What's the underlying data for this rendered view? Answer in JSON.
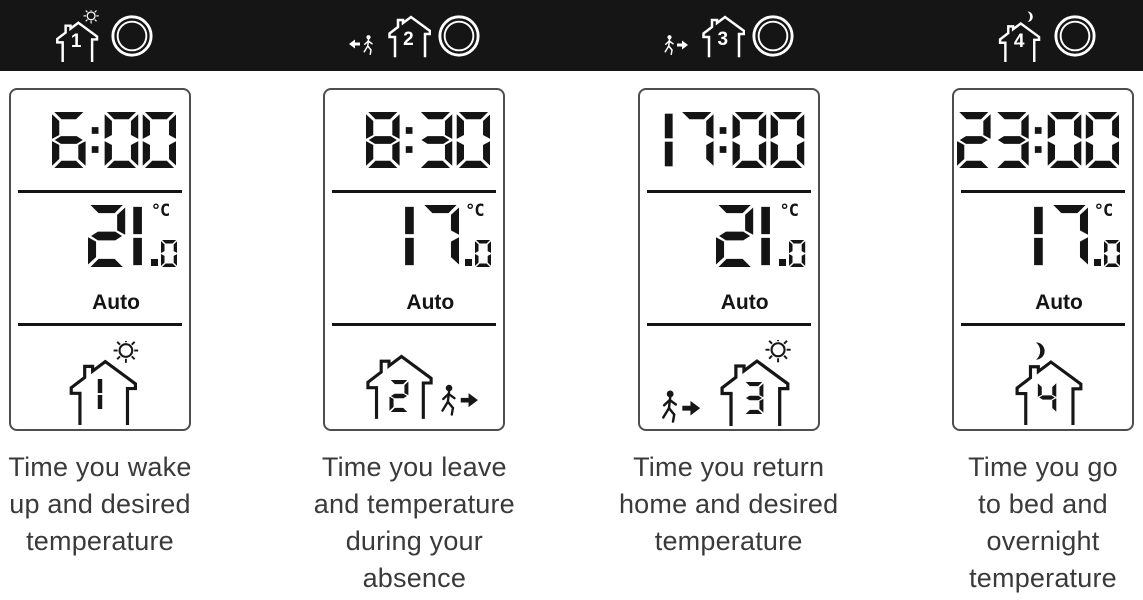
{
  "colors": {
    "header_bg": "#151515",
    "lcd_digit": "#141414",
    "caption_text": "#3a3a3a",
    "panel_border": "#4e4e4e",
    "icon_white": "#ffffff"
  },
  "header": {
    "programs": [
      {
        "number": "1",
        "meaning": "wake"
      },
      {
        "number": "2",
        "meaning": "leave"
      },
      {
        "number": "3",
        "meaning": "return"
      },
      {
        "number": "4",
        "meaning": "sleep"
      }
    ]
  },
  "panels": [
    {
      "time": "6:00",
      "temperature": "21",
      "temperature_decimal": "0",
      "unit": "°C",
      "mode": "Auto",
      "program_number": "1",
      "caption": [
        "Time you wake",
        "up and desired",
        "temperature"
      ]
    },
    {
      "time": "8:30",
      "temperature": "17",
      "temperature_decimal": "0",
      "unit": "°C",
      "mode": "Auto",
      "program_number": "2",
      "caption": [
        "Time you leave",
        "and temperature",
        "during your",
        "absence"
      ]
    },
    {
      "time": "17:00",
      "temperature": "21",
      "temperature_decimal": "0",
      "unit": "°C",
      "mode": "Auto",
      "program_number": "3",
      "caption": [
        "Time you return",
        "home and desired",
        "temperature"
      ]
    },
    {
      "time": "23:00",
      "temperature": "17",
      "temperature_decimal": "0",
      "unit": "°C",
      "mode": "Auto",
      "program_number": "4",
      "caption": [
        "Time you go",
        "to bed and",
        "overnight",
        "temperature"
      ]
    }
  ]
}
